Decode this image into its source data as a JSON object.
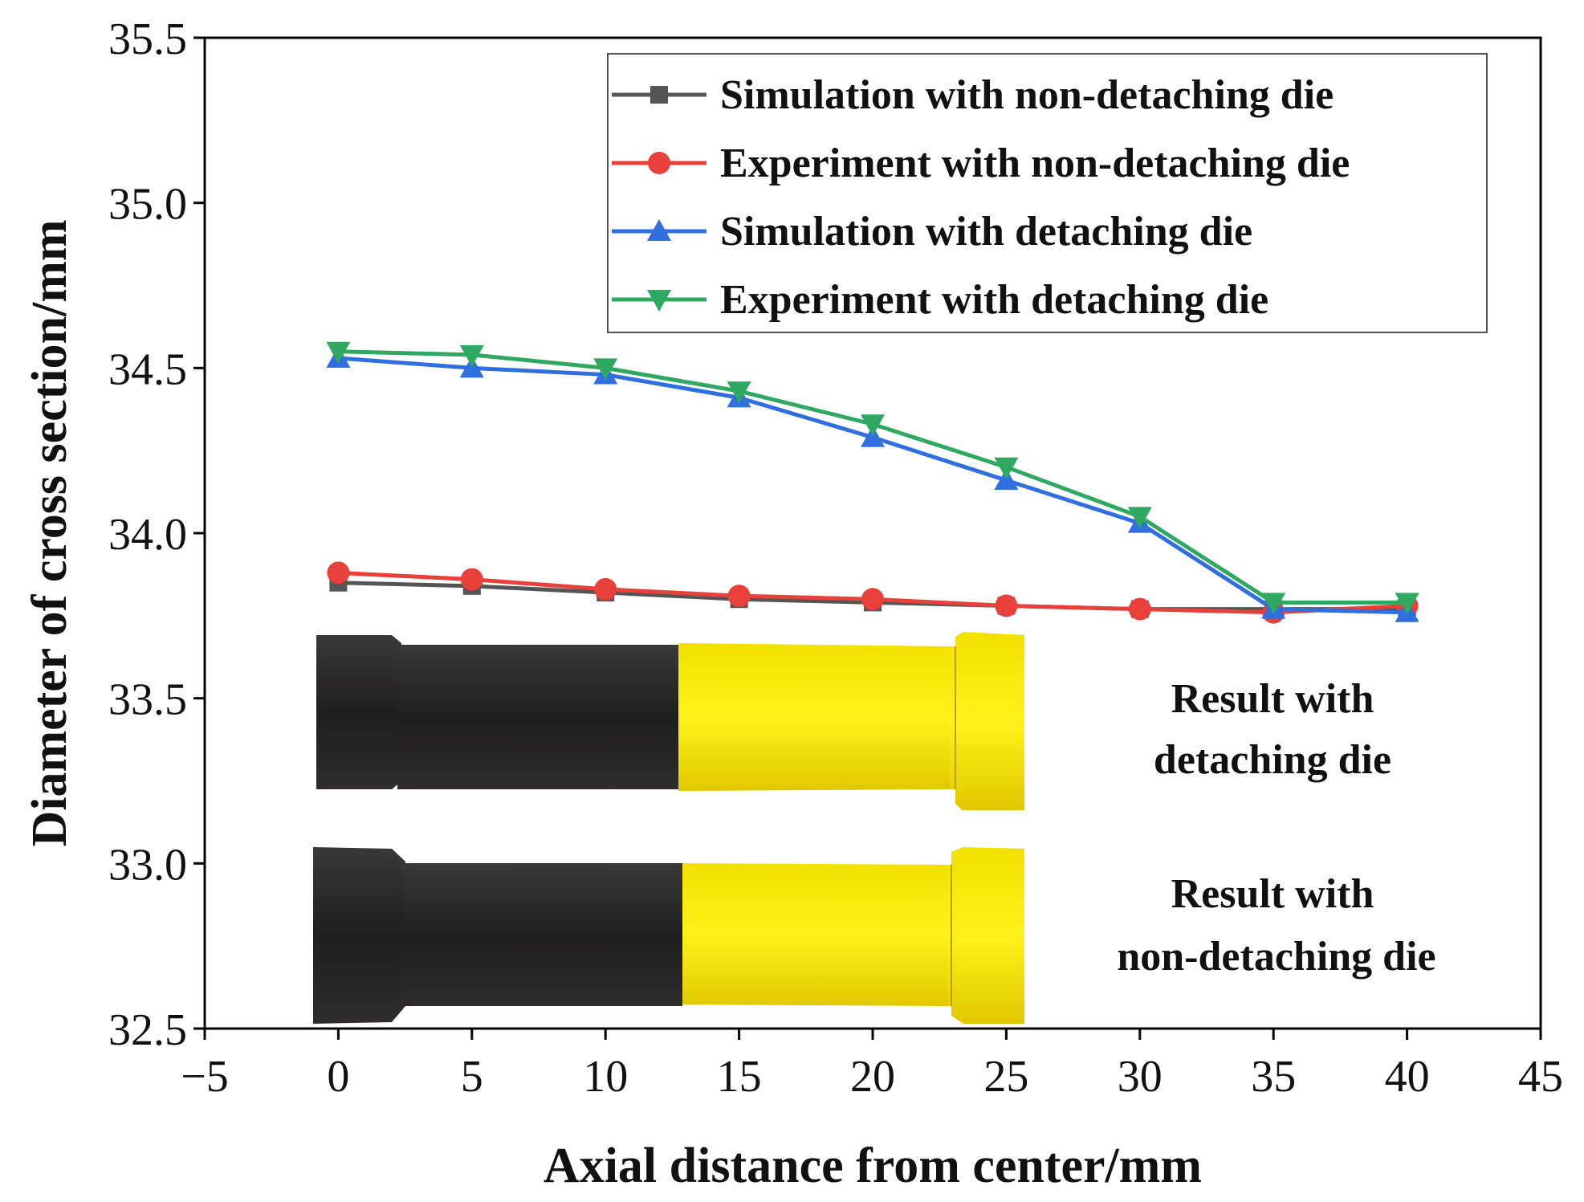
{
  "chart_data": {
    "type": "line",
    "xlabel": "Axial distance from center/mm",
    "ylabel": "Diameter of cross section/mm",
    "xlim": [
      -5,
      45
    ],
    "ylim": [
      32.5,
      35.5
    ],
    "x_ticks": [
      -5,
      0,
      5,
      10,
      15,
      20,
      25,
      30,
      35,
      40,
      45
    ],
    "x_tick_labels": [
      "−5",
      "0",
      "5",
      "10",
      "15",
      "20",
      "25",
      "30",
      "35",
      "40",
      "45"
    ],
    "y_ticks": [
      32.5,
      33.0,
      33.5,
      34.0,
      34.5,
      35.0,
      35.5
    ],
    "y_tick_labels": [
      "32.5",
      "33.0",
      "33.5",
      "34.0",
      "34.5",
      "35.0",
      "35.5"
    ],
    "x": [
      0,
      5,
      10,
      15,
      20,
      25,
      30,
      35,
      40
    ],
    "legend_position": "top-right",
    "series": [
      {
        "name": "Simulation with non-detaching die",
        "marker": "square",
        "color": "#555555",
        "values": [
          33.85,
          33.84,
          33.82,
          33.8,
          33.79,
          33.78,
          33.77,
          33.77,
          33.77
        ]
      },
      {
        "name": "Experiment with non-detaching die",
        "marker": "circle",
        "color": "#e8403a",
        "values": [
          33.88,
          33.86,
          33.83,
          33.81,
          33.8,
          33.78,
          33.77,
          33.76,
          33.78
        ]
      },
      {
        "name": "Simulation with detaching die",
        "marker": "triangle-up",
        "color": "#2f6fe0",
        "values": [
          34.53,
          34.5,
          34.48,
          34.41,
          34.29,
          34.16,
          34.03,
          33.77,
          33.76
        ]
      },
      {
        "name": "Experiment with detaching die",
        "marker": "triangle-down",
        "color": "#2fa862",
        "values": [
          34.55,
          34.54,
          34.5,
          34.43,
          34.33,
          34.2,
          34.05,
          33.79,
          33.79
        ]
      }
    ],
    "annotations": [
      {
        "id": "detaching",
        "lines": [
          "Result with",
          "detaching die"
        ]
      },
      {
        "id": "nondetaching",
        "lines": [
          "Result with",
          "non-detaching die"
        ]
      }
    ]
  }
}
